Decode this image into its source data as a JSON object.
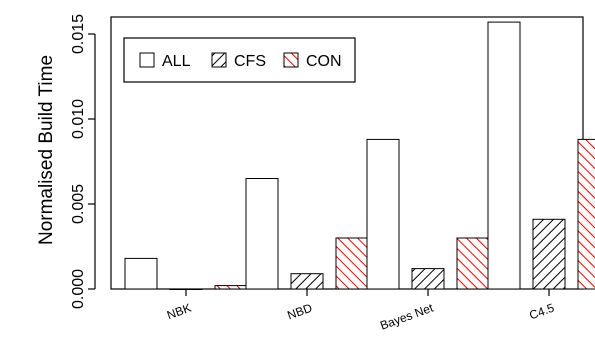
{
  "chart_data": {
    "type": "bar",
    "title": "",
    "xlabel": "",
    "ylabel": "Normalised Build Time",
    "categories": [
      "NBK",
      "NBD",
      "Bayes Net",
      "C4.5"
    ],
    "ylim": [
      0,
      0.016
    ],
    "yticks": [
      "0.000",
      "0.005",
      "0.010",
      "0.015"
    ],
    "grid": false,
    "legend_position": "top-left",
    "series": [
      {
        "name": "ALL",
        "values": [
          0.0018,
          0.0065,
          0.0088,
          0.0157
        ],
        "fill": "white",
        "color": "#000000"
      },
      {
        "name": "CFS",
        "values": [
          0.0,
          0.0009,
          0.0012,
          0.0041
        ],
        "fill": "hatch",
        "color": "#000000"
      },
      {
        "name": "CON",
        "values": [
          0.0002,
          0.003,
          0.003,
          0.0088
        ],
        "fill": "hatch",
        "color": "#ff0000"
      }
    ]
  }
}
